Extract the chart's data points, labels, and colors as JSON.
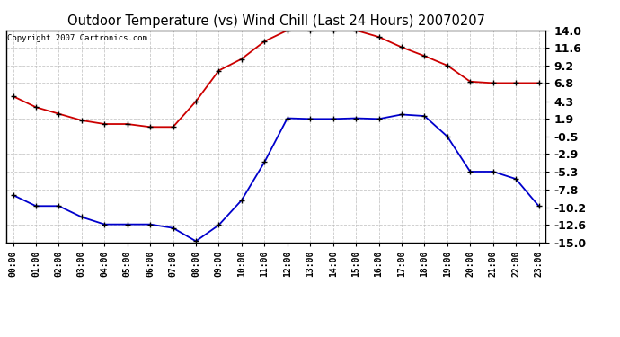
{
  "title": "Outdoor Temperature (vs) Wind Chill (Last 24 Hours) 20070207",
  "copyright_text": "Copyright 2007 Cartronics.com",
  "hours": [
    0,
    1,
    2,
    3,
    4,
    5,
    6,
    7,
    8,
    9,
    10,
    11,
    12,
    13,
    14,
    15,
    16,
    17,
    18,
    19,
    20,
    21,
    22,
    23
  ],
  "red_data": [
    5.0,
    3.5,
    2.6,
    1.7,
    1.2,
    1.2,
    0.8,
    0.8,
    4.3,
    8.5,
    10.1,
    12.5,
    14.0,
    14.0,
    14.0,
    14.0,
    13.1,
    11.7,
    10.5,
    9.2,
    7.0,
    6.8,
    6.8,
    6.8
  ],
  "blue_data": [
    -8.5,
    -10.0,
    -10.0,
    -11.5,
    -12.5,
    -12.5,
    -12.5,
    -13.0,
    -14.8,
    -12.6,
    -9.2,
    -4.0,
    2.0,
    1.9,
    1.9,
    2.0,
    1.9,
    2.5,
    2.3,
    -0.5,
    -5.3,
    -5.3,
    -6.3,
    -10.0
  ],
  "red_color": "#cc0000",
  "blue_color": "#0000cc",
  "bg_color": "#ffffff",
  "plot_bg_color": "#ffffff",
  "grid_color": "#bbbbbb",
  "ylim": [
    -15.0,
    14.0
  ],
  "yticks": [
    -15.0,
    -12.6,
    -10.2,
    -7.8,
    -5.3,
    -2.9,
    -0.5,
    1.9,
    4.3,
    6.8,
    9.2,
    11.6,
    14.0
  ],
  "title_fontsize": 10.5,
  "copyright_fontsize": 6.5,
  "tick_fontsize": 7,
  "ytick_fontsize": 9,
  "marker": "+"
}
